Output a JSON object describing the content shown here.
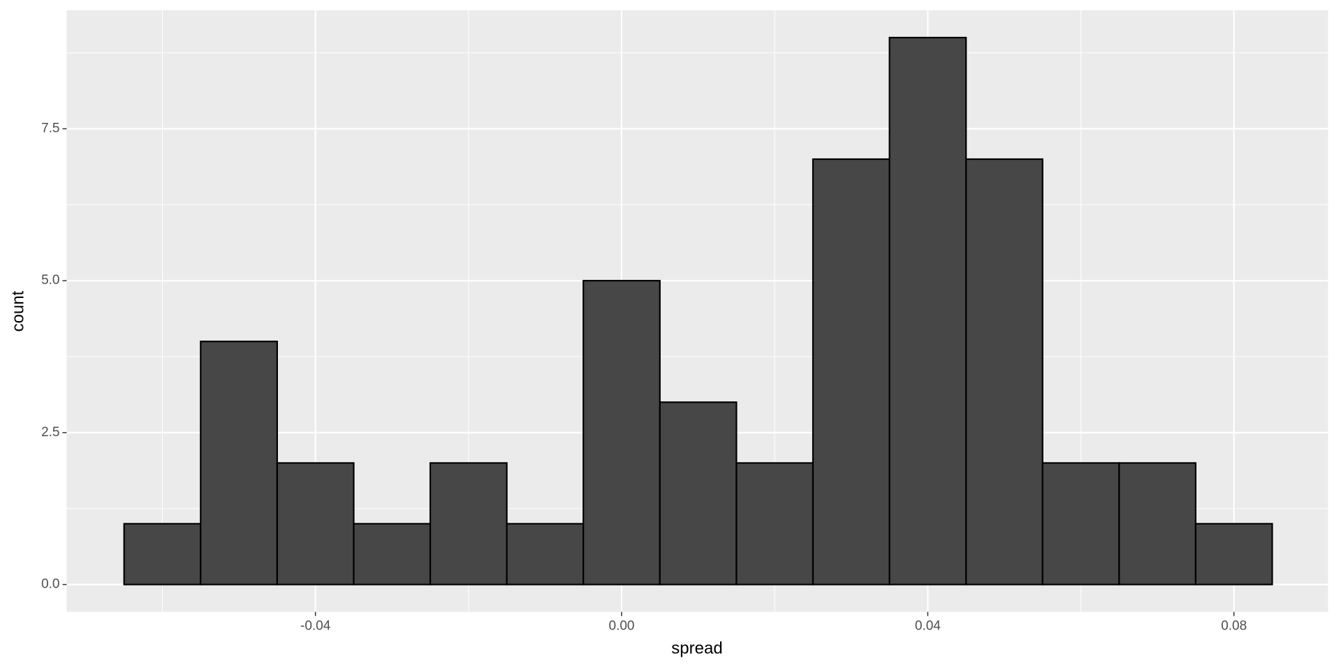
{
  "chart_data": {
    "type": "histogram",
    "xlabel": "spread",
    "ylabel": "count",
    "bins": [
      -0.065,
      -0.055,
      -0.045,
      -0.035,
      -0.025,
      -0.015,
      -0.005,
      0.005,
      0.015,
      0.025,
      0.035,
      0.045,
      0.055,
      0.065,
      0.075,
      0.085
    ],
    "counts": [
      1,
      4,
      2,
      1,
      2,
      1,
      5,
      3,
      2,
      7,
      9,
      7,
      2,
      2,
      1
    ],
    "color": "#474747",
    "edgecolor": "#000000",
    "xlim": [
      -0.0725,
      0.0923
    ],
    "ylim": [
      -0.45,
      9.45
    ],
    "xticks": [
      {
        "value": -0.04,
        "label": "-0.04"
      },
      {
        "value": 0,
        "label": "0.00"
      },
      {
        "value": 0.04,
        "label": "0.04"
      },
      {
        "value": 0.08,
        "label": "0.08"
      }
    ],
    "yticks": [
      {
        "value": 0,
        "label": "0.0"
      },
      2.5,
      {
        "value": 5,
        "label": "5.0"
      },
      7.5
    ],
    "grid": true
  }
}
